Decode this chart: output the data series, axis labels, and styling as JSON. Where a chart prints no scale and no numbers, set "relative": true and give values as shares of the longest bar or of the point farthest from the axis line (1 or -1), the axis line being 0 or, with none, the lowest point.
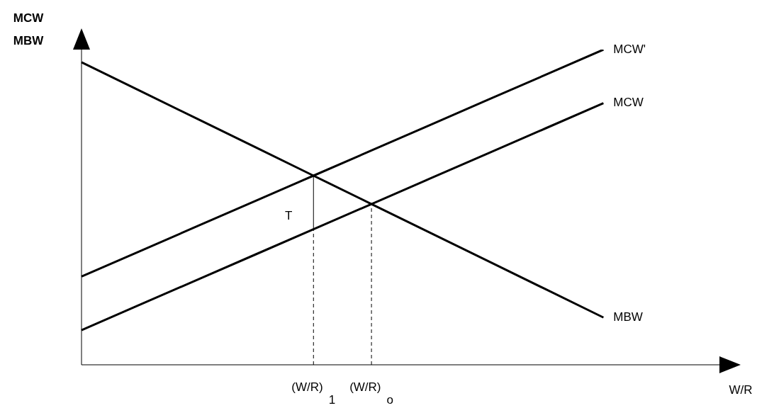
{
  "chart_data": {
    "type": "line",
    "relative": true,
    "ylabel": "MCW\nMBW",
    "xlabel": "W/R",
    "categories": [
      null,
      null,
      null,
      null,
      "(W/R)$_{1}$",
      "(W/R)$_{o}$",
      null,
      null,
      null,
      null,
      null,
      null
    ],
    "series": [
      {
        "name": "MCW'",
        "color": "#000000",
        "values": [
          0.28,
          0.36,
          0.44,
          0.52,
          0.6,
          0.68,
          0.76,
          0.84,
          0.92,
          1.0,
          null,
          null
        ]
      },
      {
        "name": "MBW",
        "color": "#000000",
        "values": [
          0.96,
          0.87,
          0.78,
          0.69,
          0.6,
          0.51,
          0.42,
          0.33,
          0.24,
          0.15,
          null,
          null
        ]
      },
      {
        "name": "MCW",
        "color": "#000000",
        "values": [
          0.11,
          0.19,
          0.27,
          0.35,
          0.43,
          0.51,
          0.59,
          0.67,
          0.75,
          0.83,
          null,
          null
        ]
      },
      {
        "color": "#000000",
        "x": [
          "(W/R)$_{1}$",
          "(W/R)$_{1}$"
        ],
        "values": [
          0.43,
          0.6
        ]
      }
    ],
    "ref_lines": [
      {
        "axis": "x",
        "value": "(W/R)$_{1}$",
        "line_style": "dashed",
        "color": "#000000"
      },
      {
        "axis": "x",
        "value": "(W/R)$_{o}$",
        "line_style": "dashed",
        "color": "#000000"
      }
    ],
    "annotations": [
      {
        "text": "T",
        "x": "(W/R)$_{1}$",
        "y": 0.43
      }
    ],
    "grid": false,
    "legend": false,
    "marker": "none",
    "line_style": "solid"
  }
}
